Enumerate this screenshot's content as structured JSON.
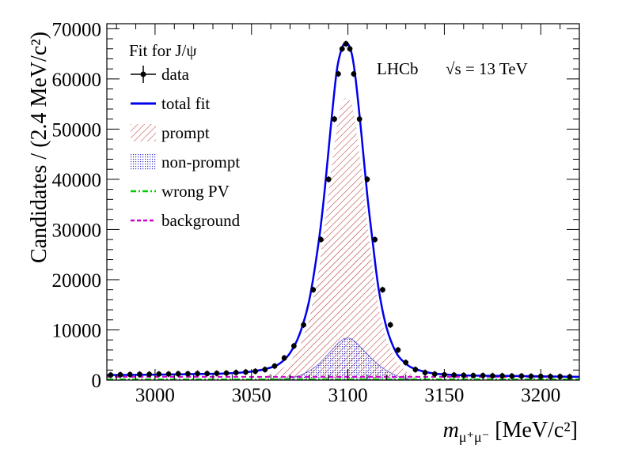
{
  "chart_data": {
    "type": "line",
    "xlabel": "m",
    "xlabel_sub": "μ⁺μ⁻",
    "xlabel_units": "[MeV/c²]",
    "ylabel": "Candidates / (2.4 MeV/c²)",
    "xlim": [
      2975,
      3220
    ],
    "ylim": [
      0,
      71000
    ],
    "x_ticks": [
      3000,
      3050,
      3100,
      3150,
      3200
    ],
    "y_ticks": [
      0,
      10000,
      20000,
      30000,
      40000,
      50000,
      60000,
      70000
    ],
    "annotation_experiment": "LHCb",
    "annotation_energy": "√s = 13 TeV",
    "legend_title": "Fit for J/ψ",
    "legend_position": "top-left",
    "series": [
      {
        "name": "data",
        "style": "points",
        "color": "#000000",
        "x": [
          2977,
          2982,
          2987,
          2992,
          2997,
          3002,
          3007,
          3012,
          3017,
          3022,
          3027,
          3032,
          3037,
          3042,
          3047,
          3052,
          3057,
          3062,
          3067,
          3072,
          3077,
          3082,
          3086,
          3090,
          3093,
          3095,
          3097,
          3099,
          3101,
          3103,
          3106,
          3110,
          3114,
          3118,
          3122,
          3126,
          3130,
          3135,
          3140,
          3145,
          3150,
          3155,
          3160,
          3165,
          3170,
          3175,
          3180,
          3185,
          3190,
          3195,
          3200,
          3205,
          3210,
          3215
        ],
        "y": [
          1000,
          1050,
          1100,
          1150,
          1150,
          1200,
          1200,
          1250,
          1250,
          1300,
          1300,
          1350,
          1400,
          1500,
          1600,
          1750,
          2100,
          2800,
          4400,
          6800,
          11000,
          18000,
          28000,
          40000,
          52000,
          61000,
          66000,
          67000,
          66000,
          61000,
          52000,
          40000,
          28000,
          18000,
          11000,
          6000,
          3500,
          2100,
          1500,
          1200,
          1050,
          1000,
          950,
          900,
          900,
          850,
          850,
          800,
          800,
          750,
          750,
          700,
          700,
          650
        ]
      },
      {
        "name": "total fit",
        "style": "line",
        "color": "#0000ee",
        "x": [
          2975,
          2990,
          3005,
          3020,
          3035,
          3050,
          3060,
          3065,
          3070,
          3075,
          3080,
          3085,
          3088,
          3091,
          3094,
          3096,
          3098,
          3100,
          3102,
          3104,
          3107,
          3110,
          3113,
          3116,
          3120,
          3125,
          3130,
          3135,
          3145,
          3160,
          3180,
          3200,
          3220
        ],
        "y": [
          1000,
          1050,
          1100,
          1200,
          1300,
          1700,
          2500,
          3400,
          5400,
          9200,
          16000,
          28000,
          38000,
          50000,
          61000,
          65000,
          67000,
          67000,
          65000,
          60000,
          49000,
          37000,
          27000,
          18000,
          10500,
          5500,
          3300,
          2200,
          1300,
          950,
          850,
          750,
          650
        ]
      },
      {
        "name": "prompt",
        "style": "hatched-area",
        "color": "#b22222",
        "x": [
          3040,
          3050,
          3060,
          3065,
          3070,
          3075,
          3080,
          3085,
          3088,
          3091,
          3094,
          3096,
          3098,
          3100,
          3102,
          3104,
          3107,
          3110,
          3113,
          3116,
          3120,
          3125,
          3130,
          3135,
          3145
        ],
        "y": [
          0,
          300,
          1200,
          2000,
          3500,
          6500,
          12000,
          22000,
          31000,
          41000,
          50000,
          54000,
          56000,
          56500,
          55000,
          51000,
          42000,
          31000,
          22000,
          14000,
          8000,
          3800,
          1800,
          700,
          0
        ]
      },
      {
        "name": "non-prompt",
        "style": "dotted-area",
        "color": "#3333cc",
        "x": [
          3060,
          3070,
          3075,
          3080,
          3085,
          3090,
          3095,
          3098,
          3100,
          3102,
          3105,
          3110,
          3115,
          3120,
          3125,
          3130,
          3140
        ],
        "y": [
          0,
          400,
          900,
          1800,
          3200,
          5300,
          7400,
          8300,
          8400,
          8200,
          7200,
          5200,
          3300,
          1900,
          900,
          300,
          0
        ]
      },
      {
        "name": "wrong PV",
        "style": "dash-dot",
        "color": "#00cc00",
        "x": [
          2975,
          3220
        ],
        "y": [
          150,
          150
        ]
      },
      {
        "name": "background",
        "style": "dashed",
        "color": "#cc00cc",
        "x": [
          2975,
          3220
        ],
        "y": [
          650,
          650
        ]
      }
    ]
  }
}
